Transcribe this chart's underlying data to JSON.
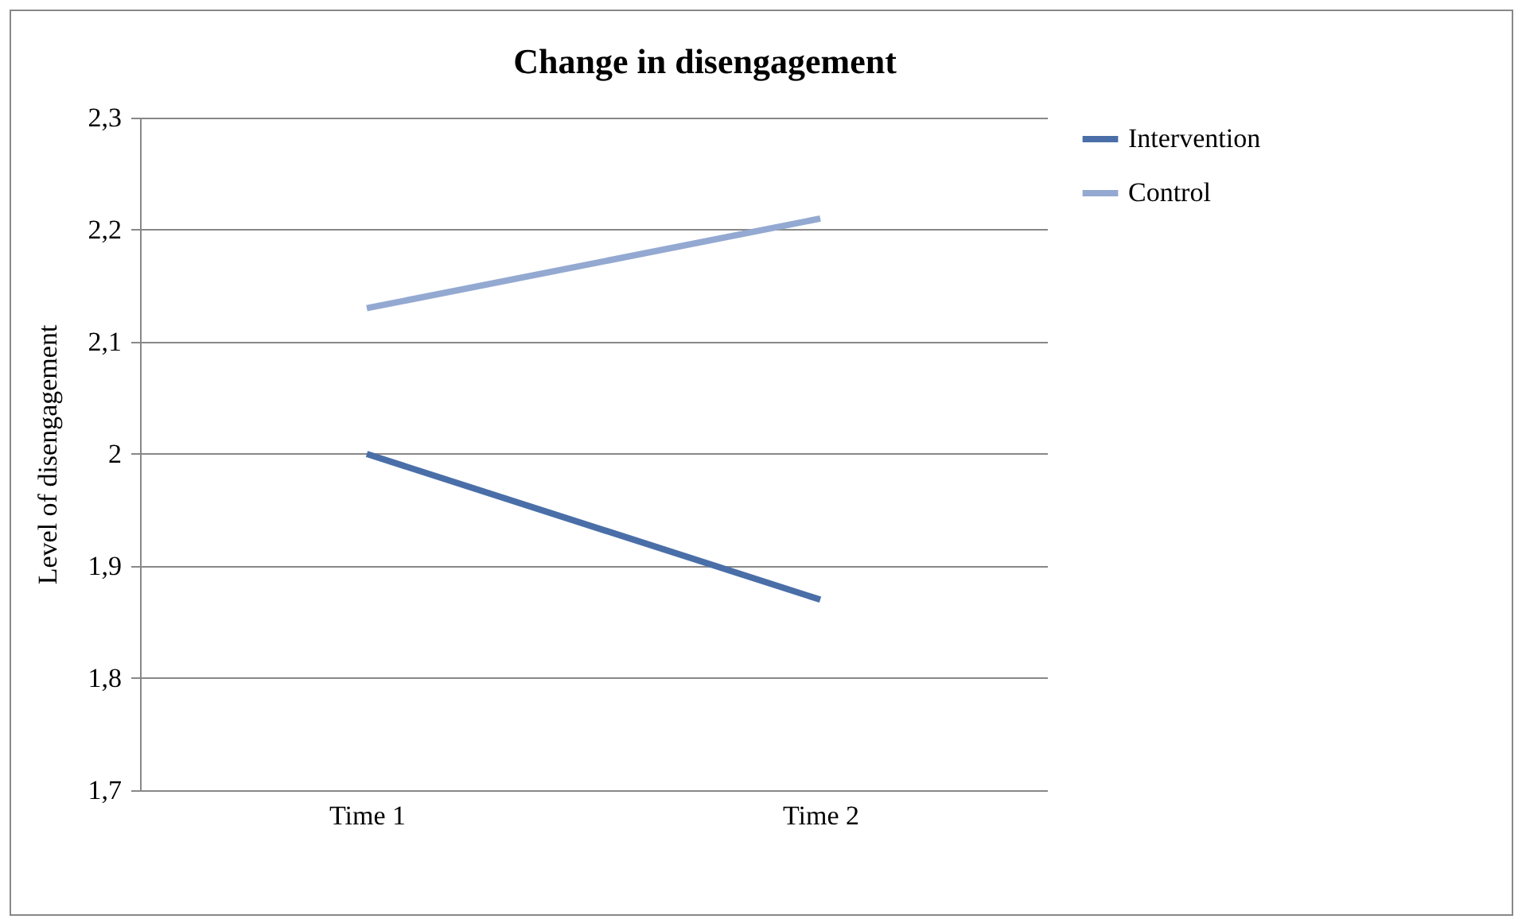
{
  "chart_data": {
    "type": "line",
    "title": "Change in disengagement",
    "ylabel": "Level of disengagement",
    "categories": [
      "Time 1",
      "Time 2"
    ],
    "series": [
      {
        "name": "Intervention",
        "color": "#4a6fa8",
        "values": [
          2.0,
          1.87
        ]
      },
      {
        "name": "Control",
        "color": "#93a9d1",
        "values": [
          2.13,
          2.21
        ]
      }
    ],
    "ylim": [
      1.7,
      2.3
    ],
    "yticks": [
      {
        "value": 1.7,
        "label": "1,7"
      },
      {
        "value": 1.8,
        "label": "1,8"
      },
      {
        "value": 1.9,
        "label": "1,9"
      },
      {
        "value": 2,
        "label": "2"
      },
      {
        "value": 2.1,
        "label": "2,1"
      },
      {
        "value": 2.2,
        "label": "2,2"
      },
      {
        "value": 2.3,
        "label": "2,3"
      }
    ],
    "grid": "y",
    "legend": "right",
    "marker": "none",
    "line_style": "solid"
  }
}
